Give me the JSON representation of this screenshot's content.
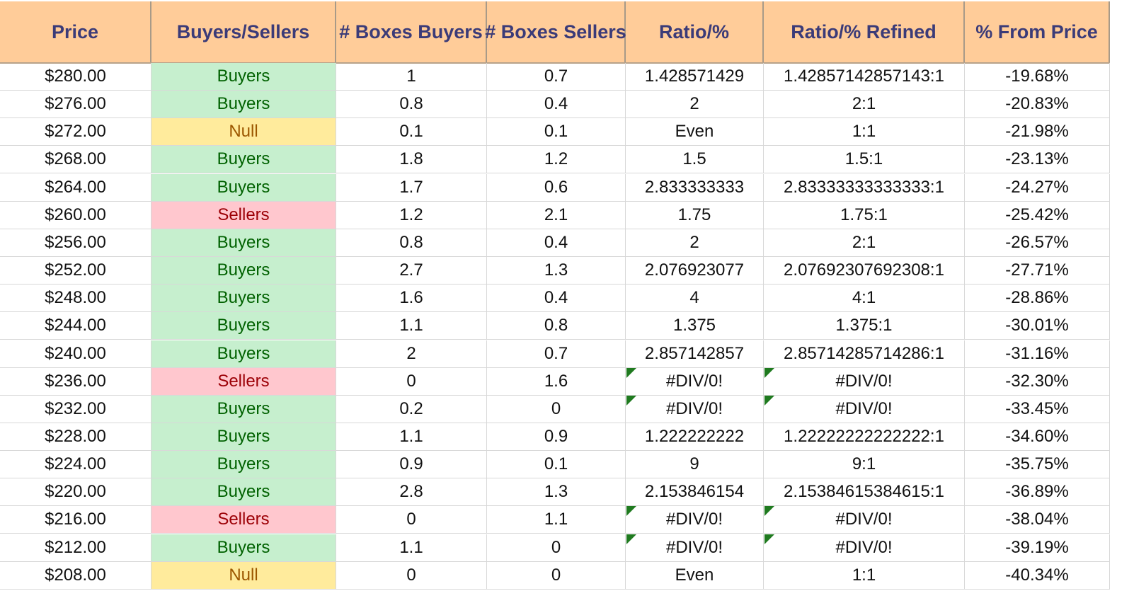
{
  "headers": [
    "Price",
    "Buyers/Sellers",
    "# Boxes Buyers",
    "# Boxes Sellers",
    "Ratio/%",
    "Ratio/% Refined",
    "% From Price"
  ],
  "rows": [
    {
      "price": "$280.00",
      "side": "Buyers",
      "buyers": "1",
      "sellers": "0.7",
      "ratio": "1.428571429",
      "refined": "1.42857142857143:1",
      "pct": "-19.68%"
    },
    {
      "price": "$276.00",
      "side": "Buyers",
      "buyers": "0.8",
      "sellers": "0.4",
      "ratio": "2",
      "refined": "2:1",
      "pct": "-20.83%"
    },
    {
      "price": "$272.00",
      "side": "Null",
      "buyers": "0.1",
      "sellers": "0.1",
      "ratio": "Even",
      "refined": "1:1",
      "pct": "-21.98%"
    },
    {
      "price": "$268.00",
      "side": "Buyers",
      "buyers": "1.8",
      "sellers": "1.2",
      "ratio": "1.5",
      "refined": "1.5:1",
      "pct": "-23.13%"
    },
    {
      "price": "$264.00",
      "side": "Buyers",
      "buyers": "1.7",
      "sellers": "0.6",
      "ratio": "2.833333333",
      "refined": "2.83333333333333:1",
      "pct": "-24.27%"
    },
    {
      "price": "$260.00",
      "side": "Sellers",
      "buyers": "1.2",
      "sellers": "2.1",
      "ratio": "1.75",
      "refined": "1.75:1",
      "pct": "-25.42%"
    },
    {
      "price": "$256.00",
      "side": "Buyers",
      "buyers": "0.8",
      "sellers": "0.4",
      "ratio": "2",
      "refined": "2:1",
      "pct": "-26.57%"
    },
    {
      "price": "$252.00",
      "side": "Buyers",
      "buyers": "2.7",
      "sellers": "1.3",
      "ratio": "2.076923077",
      "refined": "2.07692307692308:1",
      "pct": "-27.71%"
    },
    {
      "price": "$248.00",
      "side": "Buyers",
      "buyers": "1.6",
      "sellers": "0.4",
      "ratio": "4",
      "refined": "4:1",
      "pct": "-28.86%"
    },
    {
      "price": "$244.00",
      "side": "Buyers",
      "buyers": "1.1",
      "sellers": "0.8",
      "ratio": "1.375",
      "refined": "1.375:1",
      "pct": "-30.01%"
    },
    {
      "price": "$240.00",
      "side": "Buyers",
      "buyers": "2",
      "sellers": "0.7",
      "ratio": "2.857142857",
      "refined": "2.85714285714286:1",
      "pct": "-31.16%"
    },
    {
      "price": "$236.00",
      "side": "Sellers",
      "buyers": "0",
      "sellers": "1.6",
      "ratio": "#DIV/0!",
      "refined": "#DIV/0!",
      "pct": "-32.30%"
    },
    {
      "price": "$232.00",
      "side": "Buyers",
      "buyers": "0.2",
      "sellers": "0",
      "ratio": "#DIV/0!",
      "refined": "#DIV/0!",
      "pct": "-33.45%"
    },
    {
      "price": "$228.00",
      "side": "Buyers",
      "buyers": "1.1",
      "sellers": "0.9",
      "ratio": "1.222222222",
      "refined": "1.22222222222222:1",
      "pct": "-34.60%"
    },
    {
      "price": "$224.00",
      "side": "Buyers",
      "buyers": "0.9",
      "sellers": "0.1",
      "ratio": "9",
      "refined": "9:1",
      "pct": "-35.75%"
    },
    {
      "price": "$220.00",
      "side": "Buyers",
      "buyers": "2.8",
      "sellers": "1.3",
      "ratio": "2.153846154",
      "refined": "2.15384615384615:1",
      "pct": "-36.89%"
    },
    {
      "price": "$216.00",
      "side": "Sellers",
      "buyers": "0",
      "sellers": "1.1",
      "ratio": "#DIV/0!",
      "refined": "#DIV/0!",
      "pct": "-38.04%"
    },
    {
      "price": "$212.00",
      "side": "Buyers",
      "buyers": "1.1",
      "sellers": "0",
      "ratio": "#DIV/0!",
      "refined": "#DIV/0!",
      "pct": "-39.19%"
    },
    {
      "price": "$208.00",
      "side": "Null",
      "buyers": "0",
      "sellers": "0",
      "ratio": "Even",
      "refined": "1:1",
      "pct": "-40.34%"
    }
  ]
}
